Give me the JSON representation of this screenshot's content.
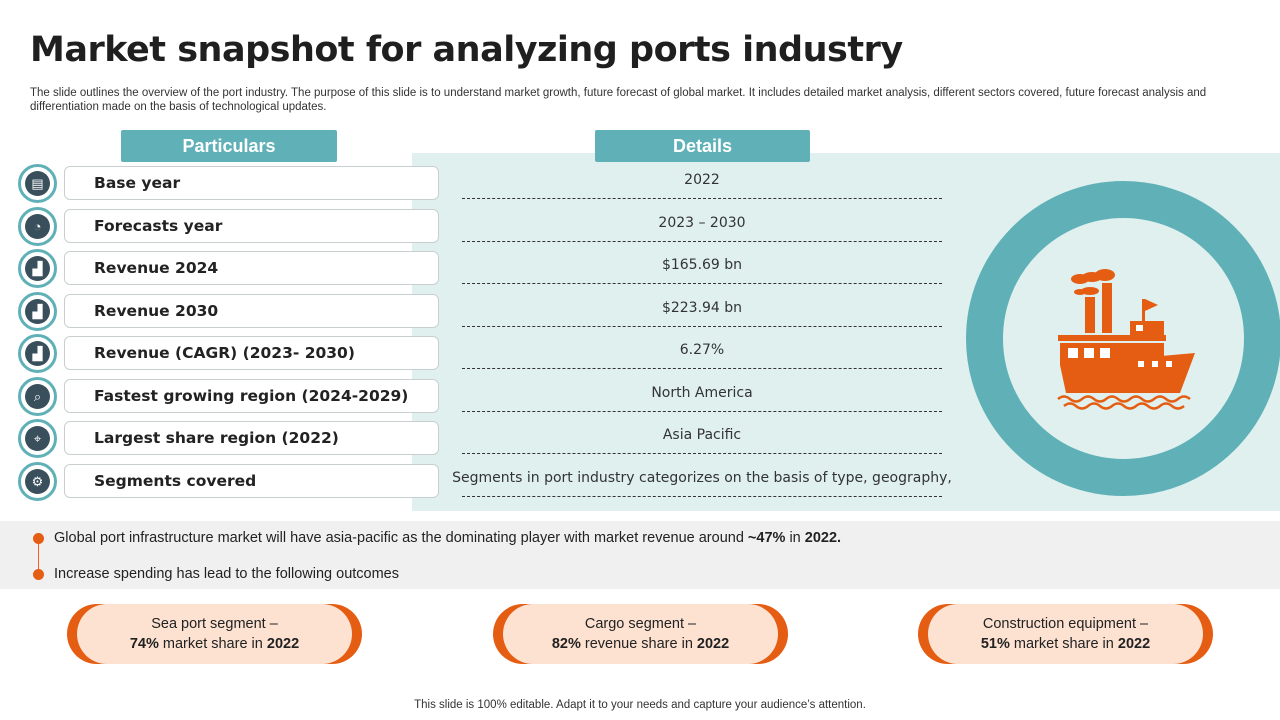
{
  "title": "Market snapshot for analyzing ports industry",
  "subtitle": "The slide outlines the overview of the port industry. The purpose of this slide is to understand market growth, future forecast of global market. It includes detailed market analysis, different sectors covered, future forecast analysis and differentiation made on  the basis of technological updates.",
  "headers": {
    "particulars": "Particulars",
    "details": "Details"
  },
  "rows": [
    {
      "label": "Base year",
      "value": "2022",
      "icon": "calendar-card-icon",
      "glyph": "▤"
    },
    {
      "label": "Forecasts year",
      "value": "2023 – 2030",
      "icon": "forecast-chart-icon",
      "glyph": "◔"
    },
    {
      "label": "Revenue 2024",
      "value": "$165.69 bn",
      "icon": "revenue-growth-icon",
      "glyph": "▟"
    },
    {
      "label": "Revenue 2030",
      "value": "$223.94 bn",
      "icon": "revenue-growth-icon",
      "glyph": "▟"
    },
    {
      "label": "Revenue (CAGR) (2023- 2030)",
      "value": "6.27%",
      "icon": "cagr-chart-icon",
      "glyph": "▟"
    },
    {
      "label": "Fastest growing region (2024-2029)",
      "value": "North America",
      "icon": "region-search-icon",
      "glyph": "⌕"
    },
    {
      "label": "Largest share region (2022)",
      "value": "Asia Pacific",
      "icon": "region-location-icon",
      "glyph": "⌖"
    },
    {
      "label": "Segments covered",
      "value": "Segments in port industry categorizes on the basis of type, geography,",
      "icon": "segments-gear-icon",
      "glyph": "⚙"
    }
  ],
  "bullets": [
    {
      "text": "Global port infrastructure market will have asia-pacific as the dominating player with market revenue around ",
      "bold1": "~47%",
      "mid": " in ",
      "bold2": "2022."
    },
    {
      "text": "Increase spending has lead to the following outcomes"
    }
  ],
  "pills": [
    {
      "line1": "Sea port segment –",
      "percent": "74%",
      "desc": " market share in ",
      "year": "2022"
    },
    {
      "line1": "Cargo segment –",
      "percent": "82%",
      "desc": " revenue share in ",
      "year": "2022"
    },
    {
      "line1": "Construction equipment –",
      "percent": "51%",
      "desc": " market share in ",
      "year": "2022"
    }
  ],
  "footer": "This slide is 100% editable. Adapt it to your needs and capture your audience’s attention.",
  "colors": {
    "teal": "#5fb1b7",
    "teal_light": "#dff0ef",
    "orange": "#e55d12",
    "peach": "#fde2d2"
  }
}
